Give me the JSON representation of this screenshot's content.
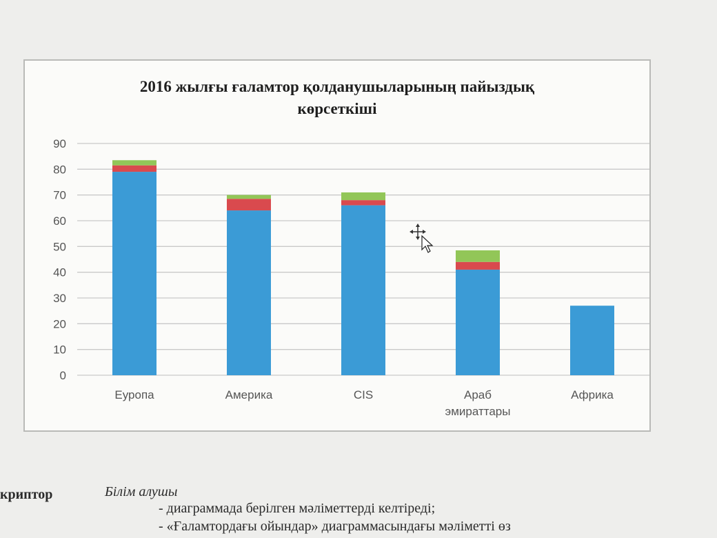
{
  "chart_data": {
    "type": "bar",
    "stacked": true,
    "title_lines": [
      "2016 жылғы ғаламтор қолданушыларының пайыздық",
      "көрсеткіші"
    ],
    "categories": [
      [
        "Еуропа"
      ],
      [
        "Америка"
      ],
      [
        "CIS"
      ],
      [
        "Араб",
        "эмираттары"
      ],
      [
        "Африка"
      ]
    ],
    "series": [
      {
        "color": "#3b9bd6",
        "values": [
          79,
          64,
          66,
          41,
          27
        ]
      },
      {
        "color": "#d94a4e",
        "values": [
          2.5,
          4.5,
          2,
          3,
          0
        ]
      },
      {
        "color": "#92c658",
        "values": [
          2,
          1.5,
          3,
          4.5,
          0
        ]
      }
    ],
    "yticks": [
      "0",
      "10",
      "20",
      "30",
      "40",
      "50",
      "60",
      "70",
      "80",
      "90"
    ],
    "ylim": [
      0,
      90
    ],
    "grid": true
  },
  "doc": {
    "descriptor": "криптор",
    "learner": "Білім алушы",
    "line1": "- диаграммада берілген мәліметтерді келтіреді;",
    "line2": "- «Ғаламтордағы ойындар» диаграммасындағы мәліметті өз"
  },
  "colors": {
    "grid": "#c9c9c9",
    "tick_text": "#555555",
    "frame_bg": "#fbfbf9"
  },
  "icons": {
    "cursor": "move-cursor-icon"
  }
}
